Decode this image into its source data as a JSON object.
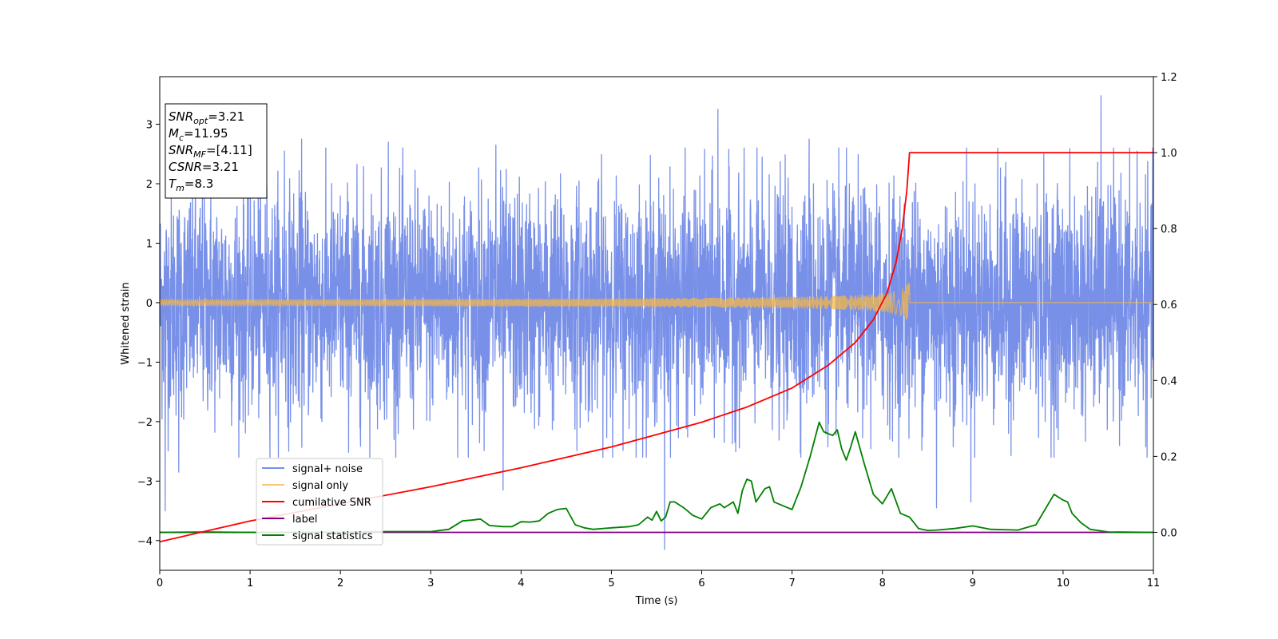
{
  "chart_data": {
    "type": "line",
    "title": "",
    "xlabel": "Time (s)",
    "ylabel": "Whitened strain",
    "y2label": "",
    "xlim": [
      0,
      11
    ],
    "ylim": [
      -4.5,
      3.8
    ],
    "y2lim": [
      -0.1,
      1.2
    ],
    "x_ticks": [
      "0",
      "1",
      "2",
      "3",
      "4",
      "5",
      "6",
      "7",
      "8",
      "9",
      "10",
      "11"
    ],
    "y_ticks": [
      "−4",
      "−3",
      "−2",
      "−1",
      "0",
      "1",
      "2",
      "3"
    ],
    "y2_ticks": [
      "0.0",
      "0.2",
      "0.4",
      "0.6",
      "0.8",
      "1.0",
      "1.2"
    ],
    "grid": false,
    "legend_position": "lower-left",
    "annotation": {
      "lines": [
        {
          "label": "SNR",
          "sub": "opt",
          "value": "=3.21"
        },
        {
          "label": "M",
          "sub": "c",
          "value": "=11.95"
        },
        {
          "label": "SNR",
          "sub": "MF",
          "value": "=[4.11]"
        },
        {
          "label": "CSNR",
          "sub": "",
          "value": "=3.21"
        },
        {
          "label": "T",
          "sub": "m",
          "value": "=8.3"
        }
      ]
    },
    "series": [
      {
        "name": "signal+ noise",
        "color": "#7890e8",
        "axis": "left",
        "noise_std": 0.95,
        "outliers": [
          {
            "x": 0.06,
            "y": -3.5
          },
          {
            "x": 0.21,
            "y": -2.85
          },
          {
            "x": 1.38,
            "y": 2.55
          },
          {
            "x": 1.57,
            "y": 2.75
          },
          {
            "x": 2.53,
            "y": 2.7
          },
          {
            "x": 3.72,
            "y": 2.65
          },
          {
            "x": 3.8,
            "y": -3.15
          },
          {
            "x": 5.59,
            "y": -4.15
          },
          {
            "x": 6.18,
            "y": 3.25
          },
          {
            "x": 7.19,
            "y": 2.75
          },
          {
            "x": 8.6,
            "y": -3.45
          },
          {
            "x": 8.98,
            "y": -3.35
          },
          {
            "x": 10.42,
            "y": 3.48
          },
          {
            "x": 10.82,
            "y": 2.55
          }
        ]
      },
      {
        "name": "signal only",
        "color": "#f5b74a",
        "axis": "left",
        "chirp": {
          "t_merger": 8.3,
          "peak_amplitude": 0.4
        }
      },
      {
        "name": "cumilative SNR",
        "color": "#ff0000",
        "axis": "right",
        "x": [
          0,
          1,
          2,
          3,
          4,
          5,
          6,
          6.5,
          7,
          7.4,
          7.7,
          7.9,
          8.05,
          8.15,
          8.22,
          8.27,
          8.3,
          11
        ],
        "y": [
          -0.025,
          0.03,
          0.075,
          0.12,
          0.17,
          0.225,
          0.29,
          0.33,
          0.38,
          0.44,
          0.5,
          0.56,
          0.63,
          0.71,
          0.8,
          0.9,
          1.0,
          1.0
        ]
      },
      {
        "name": "label",
        "color": "#800080",
        "axis": "right",
        "x": [
          0,
          11
        ],
        "y": [
          0,
          0
        ]
      },
      {
        "name": "signal statistics",
        "color": "#008000",
        "axis": "right",
        "x": [
          0,
          0.5,
          1,
          2,
          2.5,
          3,
          3.2,
          3.35,
          3.45,
          3.55,
          3.65,
          3.8,
          3.9,
          4.0,
          4.1,
          4.2,
          4.3,
          4.4,
          4.5,
          4.6,
          4.7,
          4.8,
          5.0,
          5.2,
          5.3,
          5.4,
          5.45,
          5.5,
          5.55,
          5.6,
          5.65,
          5.7,
          5.8,
          5.9,
          6.0,
          6.1,
          6.2,
          6.25,
          6.35,
          6.4,
          6.45,
          6.5,
          6.55,
          6.6,
          6.7,
          6.75,
          6.8,
          6.9,
          7.0,
          7.1,
          7.2,
          7.3,
          7.35,
          7.45,
          7.5,
          7.55,
          7.6,
          7.65,
          7.7,
          7.8,
          7.9,
          8.0,
          8.1,
          8.2,
          8.3,
          8.4,
          8.5,
          8.6,
          8.8,
          9.0,
          9.2,
          9.5,
          9.7,
          9.8,
          9.9,
          10.0,
          10.05,
          10.1,
          10.2,
          10.3,
          10.5,
          11
        ],
        "y": [
          0,
          0.001,
          0,
          0,
          0.002,
          0.002,
          0.008,
          0.03,
          0.032,
          0.035,
          0.018,
          0.015,
          0.015,
          0.028,
          0.027,
          0.03,
          0.05,
          0.06,
          0.063,
          0.02,
          0.012,
          0.008,
          0.012,
          0.015,
          0.02,
          0.04,
          0.032,
          0.055,
          0.03,
          0.04,
          0.08,
          0.08,
          0.065,
          0.045,
          0.035,
          0.065,
          0.075,
          0.065,
          0.08,
          0.05,
          0.11,
          0.14,
          0.135,
          0.08,
          0.115,
          0.12,
          0.08,
          0.07,
          0.06,
          0.12,
          0.2,
          0.29,
          0.265,
          0.255,
          0.27,
          0.22,
          0.19,
          0.225,
          0.265,
          0.18,
          0.1,
          0.075,
          0.115,
          0.05,
          0.04,
          0.01,
          0.005,
          0.006,
          0.01,
          0.017,
          0.008,
          0.006,
          0.02,
          0.06,
          0.1,
          0.085,
          0.08,
          0.05,
          0.025,
          0.008,
          0.001,
          0
        ]
      }
    ]
  }
}
